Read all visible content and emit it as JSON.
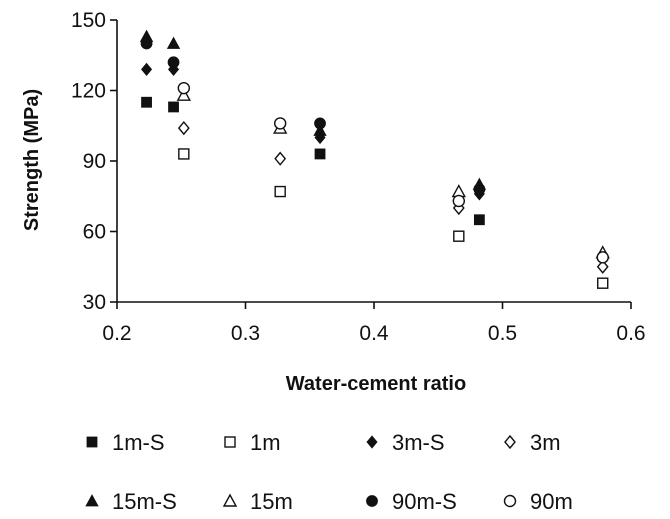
{
  "chart_data": {
    "type": "scatter",
    "title": "",
    "xlabel": "Water-cement ratio",
    "ylabel": "Strength (MPa)",
    "xlim": [
      0.2,
      0.6
    ],
    "ylim": [
      30,
      150
    ],
    "x_ticks": [
      "0.2",
      "0.3",
      "0.4",
      "0.5",
      "0.6"
    ],
    "y_ticks": [
      "30",
      "60",
      "90",
      "120",
      "150"
    ],
    "grid": false,
    "legend_position": "bottom",
    "series": [
      {
        "name": "1m-S",
        "marker": "square-filled",
        "points": [
          [
            0.223,
            115
          ],
          [
            0.244,
            113
          ],
          [
            0.358,
            93
          ],
          [
            0.482,
            65
          ]
        ]
      },
      {
        "name": "1m",
        "marker": "square-open",
        "points": [
          [
            0.252,
            93
          ],
          [
            0.327,
            77
          ],
          [
            0.466,
            58
          ],
          [
            0.578,
            38
          ]
        ]
      },
      {
        "name": "3m-S",
        "marker": "diamond-filled",
        "points": [
          [
            0.223,
            129
          ],
          [
            0.244,
            129
          ],
          [
            0.358,
            100
          ],
          [
            0.482,
            76
          ]
        ]
      },
      {
        "name": "3m",
        "marker": "diamond-open",
        "points": [
          [
            0.252,
            104
          ],
          [
            0.327,
            91
          ],
          [
            0.466,
            70
          ],
          [
            0.578,
            45
          ]
        ]
      },
      {
        "name": "15m-S",
        "marker": "triangle-filled",
        "points": [
          [
            0.223,
            143
          ],
          [
            0.244,
            140
          ],
          [
            0.358,
            103
          ],
          [
            0.482,
            80
          ]
        ]
      },
      {
        "name": "15m",
        "marker": "triangle-open",
        "points": [
          [
            0.252,
            118
          ],
          [
            0.327,
            104
          ],
          [
            0.466,
            77
          ],
          [
            0.578,
            51
          ]
        ]
      },
      {
        "name": "90m-S",
        "marker": "circle-filled",
        "points": [
          [
            0.223,
            140
          ],
          [
            0.244,
            132
          ],
          [
            0.358,
            106
          ],
          [
            0.482,
            78
          ]
        ]
      },
      {
        "name": "90m",
        "marker": "circle-open",
        "points": [
          [
            0.252,
            121
          ],
          [
            0.327,
            106
          ],
          [
            0.466,
            73
          ],
          [
            0.578,
            49
          ]
        ]
      }
    ]
  }
}
